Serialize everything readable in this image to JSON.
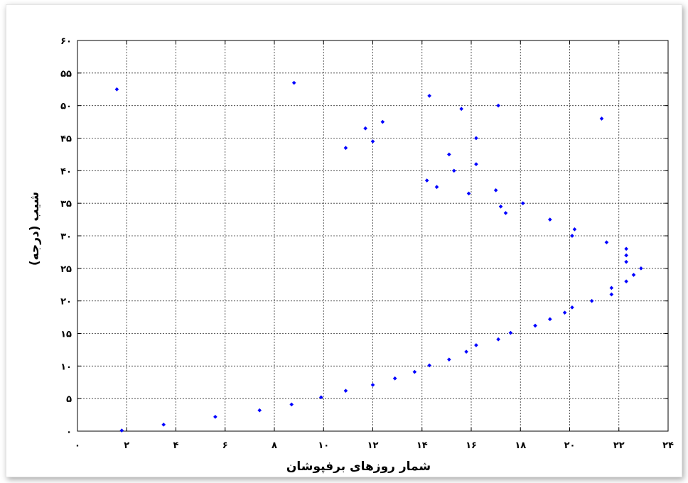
{
  "chart_data": {
    "type": "scatter",
    "title": "",
    "xlabel": "شمار روزهای برفپوشان",
    "ylabel": "شیب (درجه)",
    "xlim": [
      0,
      24
    ],
    "ylim": [
      0,
      60
    ],
    "xticks": [
      0,
      2,
      4,
      6,
      8,
      10,
      12,
      14,
      16,
      18,
      20,
      22,
      24
    ],
    "yticks": [
      0,
      5,
      10,
      15,
      20,
      25,
      30,
      35,
      40,
      45,
      50,
      55,
      60
    ],
    "xtick_labels": [
      "۰",
      "۲",
      "۴",
      "۶",
      "۸",
      "۱۰",
      "۱۲",
      "۱۴",
      "۱۶",
      "۱۸",
      "۲۰",
      "۲۲",
      "۲۴"
    ],
    "ytick_labels": [
      "۰",
      "۵",
      "۱۰",
      "۱۵",
      "۲۰",
      "۲۵",
      "۳۰",
      "۳۵",
      "۴۰",
      "۴۵",
      "۵۰",
      "۵۵",
      "۶۰"
    ],
    "grid": true,
    "marker_color": "#0000ff",
    "series": [
      {
        "points": [
          [
            1.6,
            52.5
          ],
          [
            1.8,
            0.1
          ],
          [
            3.5,
            1.0
          ],
          [
            5.6,
            2.2
          ],
          [
            7.4,
            3.2
          ],
          [
            8.7,
            4.1
          ],
          [
            8.8,
            53.5
          ],
          [
            9.9,
            5.2
          ],
          [
            10.9,
            43.5
          ],
          [
            10.9,
            6.2
          ],
          [
            11.7,
            46.5
          ],
          [
            12.0,
            44.5
          ],
          [
            12.0,
            7.1
          ],
          [
            12.4,
            47.5
          ],
          [
            12.9,
            8.1
          ],
          [
            13.7,
            9.1
          ],
          [
            14.2,
            38.5
          ],
          [
            14.3,
            51.5
          ],
          [
            14.3,
            10.1
          ],
          [
            14.6,
            37.5
          ],
          [
            15.1,
            42.5
          ],
          [
            15.1,
            11.0
          ],
          [
            15.3,
            40.0
          ],
          [
            15.6,
            49.5
          ],
          [
            15.8,
            12.2
          ],
          [
            15.9,
            36.5
          ],
          [
            16.2,
            45.0
          ],
          [
            16.2,
            41.0
          ],
          [
            16.2,
            13.2
          ],
          [
            17.0,
            37.0
          ],
          [
            17.1,
            50.0
          ],
          [
            17.1,
            14.1
          ],
          [
            17.2,
            34.5
          ],
          [
            17.4,
            33.5
          ],
          [
            17.6,
            15.1
          ],
          [
            18.1,
            35.0
          ],
          [
            18.6,
            16.2
          ],
          [
            19.2,
            32.5
          ],
          [
            19.2,
            17.2
          ],
          [
            19.8,
            18.2
          ],
          [
            20.1,
            30.0
          ],
          [
            20.2,
            31.0
          ],
          [
            20.1,
            19.0
          ],
          [
            20.9,
            20.0
          ],
          [
            21.3,
            48.0
          ],
          [
            21.5,
            29.0
          ],
          [
            21.7,
            22.0
          ],
          [
            21.7,
            21.0
          ],
          [
            22.3,
            28.0
          ],
          [
            22.3,
            27.0
          ],
          [
            22.3,
            26.0
          ],
          [
            22.3,
            23.0
          ],
          [
            22.6,
            24.0
          ],
          [
            22.9,
            25.0
          ]
        ]
      }
    ]
  }
}
